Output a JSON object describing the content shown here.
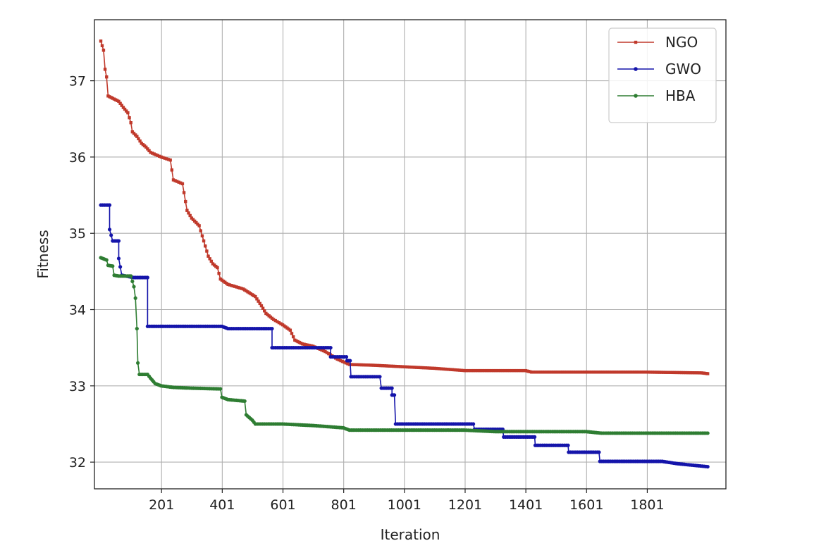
{
  "chart_data": {
    "type": "line",
    "title": "",
    "xlabel": "Iteration",
    "ylabel": "Fitness",
    "xlim": [
      -20,
      2060
    ],
    "ylim": [
      31.65,
      37.8
    ],
    "xticks": [
      201,
      401,
      601,
      801,
      1001,
      1201,
      1401,
      1601,
      1801
    ],
    "yticks": [
      32,
      33,
      34,
      35,
      36,
      37
    ],
    "grid": true,
    "legend_position": "top-right",
    "series": [
      {
        "name": "NGO",
        "color": "#c0392b",
        "marker": "square",
        "points": [
          [
            1,
            37.52
          ],
          [
            10,
            37.4
          ],
          [
            15,
            37.15
          ],
          [
            20,
            37.05
          ],
          [
            25,
            36.8
          ],
          [
            40,
            36.77
          ],
          [
            60,
            36.73
          ],
          [
            75,
            36.65
          ],
          [
            90,
            36.58
          ],
          [
            100,
            36.45
          ],
          [
            105,
            36.33
          ],
          [
            120,
            36.27
          ],
          [
            135,
            36.18
          ],
          [
            150,
            36.13
          ],
          [
            165,
            36.06
          ],
          [
            200,
            36.0
          ],
          [
            230,
            35.96
          ],
          [
            240,
            35.7
          ],
          [
            270,
            35.65
          ],
          [
            285,
            35.3
          ],
          [
            300,
            35.2
          ],
          [
            325,
            35.1
          ],
          [
            340,
            34.9
          ],
          [
            355,
            34.7
          ],
          [
            370,
            34.6
          ],
          [
            385,
            34.55
          ],
          [
            395,
            34.4
          ],
          [
            420,
            34.33
          ],
          [
            470,
            34.27
          ],
          [
            490,
            34.22
          ],
          [
            510,
            34.17
          ],
          [
            530,
            34.05
          ],
          [
            545,
            33.95
          ],
          [
            570,
            33.87
          ],
          [
            600,
            33.8
          ],
          [
            625,
            33.73
          ],
          [
            640,
            33.6
          ],
          [
            665,
            33.55
          ],
          [
            700,
            33.52
          ],
          [
            740,
            33.45
          ],
          [
            780,
            33.35
          ],
          [
            820,
            33.28
          ],
          [
            900,
            33.27
          ],
          [
            1000,
            33.25
          ],
          [
            1100,
            33.23
          ],
          [
            1200,
            33.2
          ],
          [
            1300,
            33.2
          ],
          [
            1400,
            33.2
          ],
          [
            1420,
            33.18
          ],
          [
            1600,
            33.18
          ],
          [
            1800,
            33.18
          ],
          [
            1980,
            33.17
          ],
          [
            2000,
            33.16
          ]
        ]
      },
      {
        "name": "GWO",
        "color": "#1414aa",
        "marker": "circle",
        "points": [
          [
            1,
            35.37
          ],
          [
            30,
            35.37
          ],
          [
            30,
            35.05
          ],
          [
            40,
            34.9
          ],
          [
            60,
            34.9
          ],
          [
            60,
            34.67
          ],
          [
            70,
            34.45
          ],
          [
            110,
            34.42
          ],
          [
            155,
            34.42
          ],
          [
            155,
            33.78
          ],
          [
            400,
            33.78
          ],
          [
            420,
            33.75
          ],
          [
            565,
            33.75
          ],
          [
            565,
            33.5
          ],
          [
            758,
            33.5
          ],
          [
            758,
            33.38
          ],
          [
            810,
            33.38
          ],
          [
            812,
            33.33
          ],
          [
            822,
            33.33
          ],
          [
            825,
            33.12
          ],
          [
            920,
            33.12
          ],
          [
            925,
            32.97
          ],
          [
            960,
            32.97
          ],
          [
            960,
            32.88
          ],
          [
            968,
            32.88
          ],
          [
            972,
            32.5
          ],
          [
            1228,
            32.5
          ],
          [
            1232,
            32.43
          ],
          [
            1325,
            32.43
          ],
          [
            1328,
            32.33
          ],
          [
            1430,
            32.33
          ],
          [
            1432,
            32.22
          ],
          [
            1540,
            32.22
          ],
          [
            1542,
            32.13
          ],
          [
            1642,
            32.13
          ],
          [
            1645,
            32.01
          ],
          [
            1850,
            32.01
          ],
          [
            1900,
            31.98
          ],
          [
            2000,
            31.94
          ]
        ]
      },
      {
        "name": "HBA",
        "color": "#2e7d32",
        "marker": "circle",
        "points": [
          [
            1,
            34.68
          ],
          [
            20,
            34.65
          ],
          [
            25,
            34.58
          ],
          [
            40,
            34.57
          ],
          [
            45,
            34.45
          ],
          [
            60,
            34.44
          ],
          [
            100,
            34.44
          ],
          [
            110,
            34.3
          ],
          [
            115,
            34.15
          ],
          [
            120,
            33.75
          ],
          [
            123,
            33.3
          ],
          [
            128,
            33.15
          ],
          [
            155,
            33.15
          ],
          [
            165,
            33.1
          ],
          [
            180,
            33.03
          ],
          [
            200,
            33.0
          ],
          [
            240,
            32.98
          ],
          [
            300,
            32.97
          ],
          [
            395,
            32.96
          ],
          [
            400,
            32.85
          ],
          [
            420,
            32.82
          ],
          [
            475,
            32.8
          ],
          [
            480,
            32.62
          ],
          [
            500,
            32.55
          ],
          [
            510,
            32.5
          ],
          [
            600,
            32.5
          ],
          [
            700,
            32.48
          ],
          [
            800,
            32.45
          ],
          [
            820,
            32.42
          ],
          [
            1000,
            32.42
          ],
          [
            1200,
            32.42
          ],
          [
            1300,
            32.4
          ],
          [
            1400,
            32.4
          ],
          [
            1600,
            32.4
          ],
          [
            1650,
            32.38
          ],
          [
            1800,
            32.38
          ],
          [
            2000,
            32.38
          ]
        ]
      }
    ]
  }
}
